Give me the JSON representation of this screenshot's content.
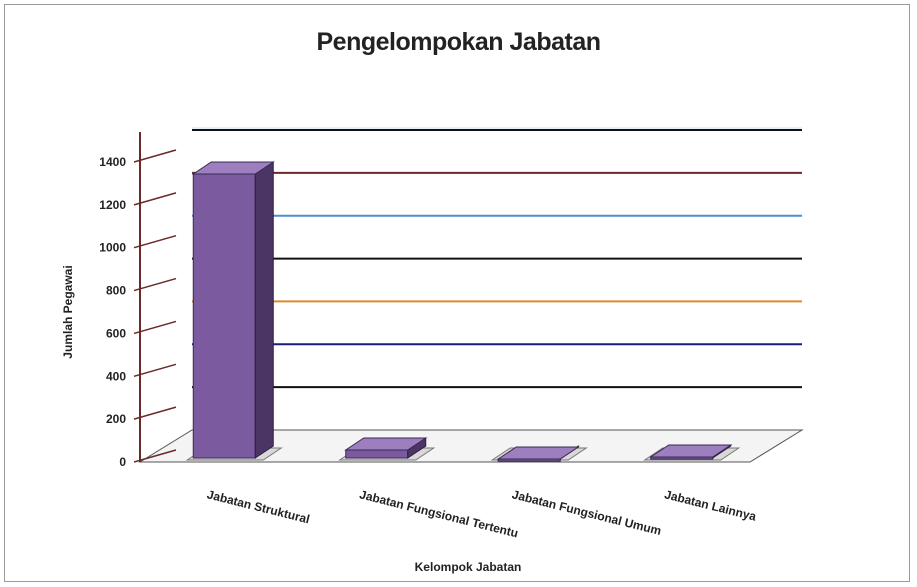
{
  "chart_data": {
    "type": "bar",
    "title": "Pengelompokan Jabatan",
    "xlabel": "Kelompok Jabatan",
    "ylabel": "Jumlah Pegawai",
    "categories": [
      "Jabatan Struktural",
      "Jabatan Fungsional Tertentu",
      "Jabatan Fungsional Umum",
      "Jabatan Lainnya"
    ],
    "values": [
      1440,
      60,
      15,
      25
    ],
    "ylim": [
      0,
      1500
    ],
    "yticks": [
      "0",
      "200",
      "400",
      "600",
      "800",
      "1000",
      "1200",
      "1400"
    ],
    "legend": "none",
    "grid": true,
    "colors": {
      "bar_front": "#7b5aa0",
      "bar_side": "#4a3565",
      "bar_top": "#9d7fbf",
      "gridlines": [
        "#111111",
        "#1b1b7a",
        "#d98a2b",
        "#111111",
        "#4f8fcf",
        "#6b2a2a",
        "#111111"
      ]
    }
  }
}
